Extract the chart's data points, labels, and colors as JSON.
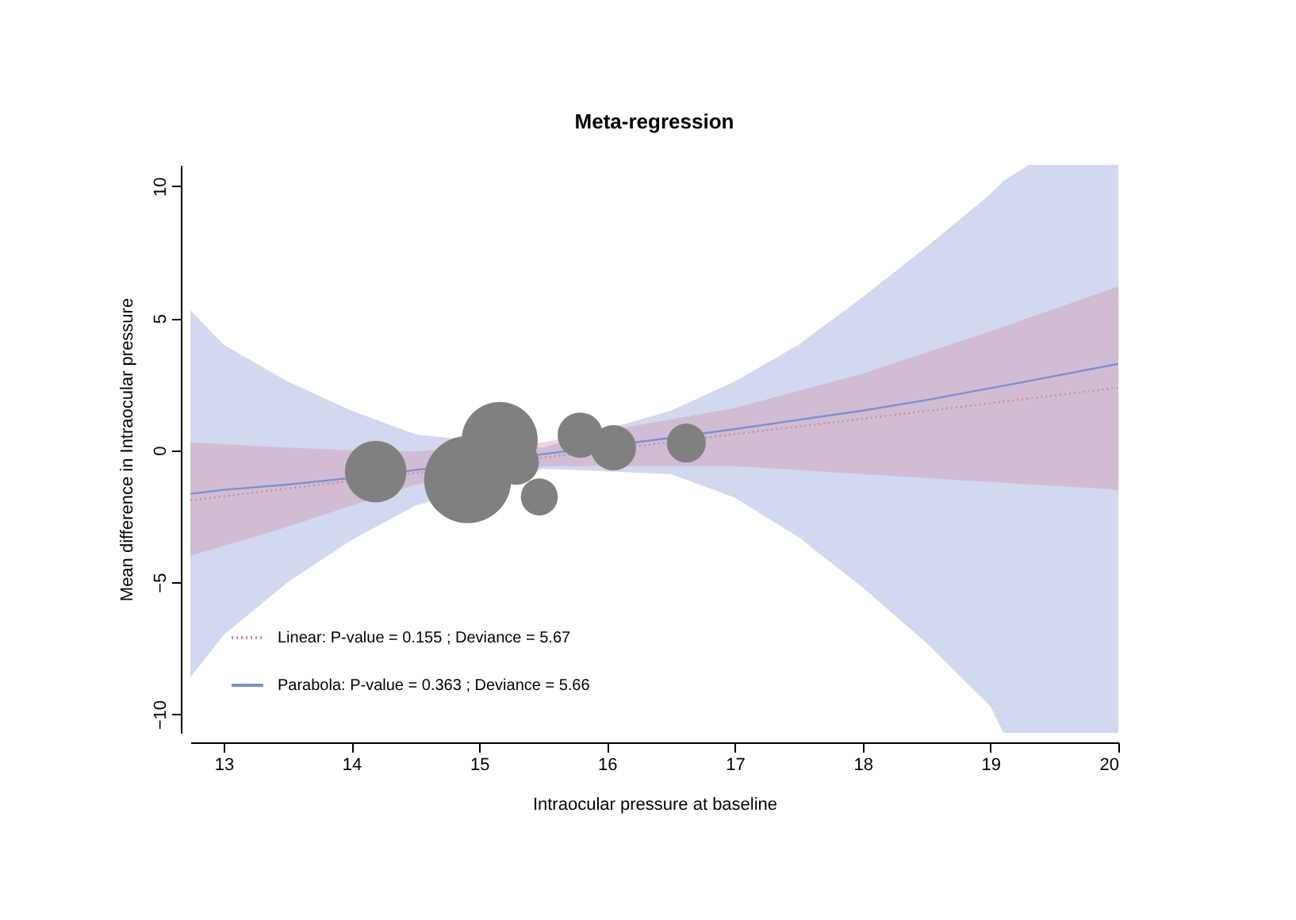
{
  "chart_data": {
    "type": "line",
    "title": "Meta-regression",
    "xlabel": "Intraocular pressure at baseline",
    "ylabel": "Mean difference in Intraocular pressure",
    "xlim": [
      12.74,
      20
    ],
    "ylim": [
      -10.7,
      10.8
    ],
    "xticks": [
      13,
      14,
      15,
      16,
      17,
      18,
      19,
      20
    ],
    "yticks": [
      -10,
      -5,
      0,
      5,
      10
    ],
    "grid": false,
    "legend": "bottom left",
    "marker": "none",
    "series": [
      {
        "name": "Linear: P-value = 0.155 ;  Deviance = 5.67",
        "color": "#d08aa0",
        "line_style": "dotted",
        "x": [
          12.74,
          13.5,
          14,
          14.5,
          15.5,
          17,
          18,
          19,
          20
        ],
        "values": [
          -1.9,
          -1.45,
          -1.16,
          -0.86,
          -0.28,
          0.61,
          1.19,
          1.78,
          2.37
        ],
        "lower": [
          -4.0,
          -2.9,
          -2.1,
          -1.3,
          -0.6,
          -0.6,
          -0.9,
          -1.2,
          -1.5
        ],
        "upper": [
          0.3,
          0.1,
          0.0,
          -0.05,
          0.3,
          1.6,
          2.9,
          4.5,
          6.2
        ]
      },
      {
        "name": "Parabola: P-value = 0.363 ;  Deviance = 5.66",
        "color": "#7f8fd0",
        "line_style": "solid",
        "x": [
          12.74,
          13,
          13.5,
          14,
          14.5,
          15.5,
          16.5,
          17,
          17.5,
          18,
          18.5,
          19,
          19.1,
          19.3,
          20
        ],
        "values": [
          -1.65,
          -1.5,
          -1.3,
          -1.05,
          -0.75,
          -0.15,
          0.47,
          0.8,
          1.15,
          1.5,
          1.9,
          2.35,
          2.44,
          2.62,
          3.27
        ],
        "lower": [
          -8.6,
          -7.0,
          -5.0,
          -3.4,
          -2.1,
          -0.7,
          -0.9,
          -1.8,
          -3.3,
          -5.2,
          -7.3,
          -9.7,
          -10.7,
          -10.7,
          -10.7
        ],
        "upper": [
          5.3,
          4.0,
          2.6,
          1.5,
          0.6,
          0.1,
          1.5,
          2.6,
          4.0,
          5.8,
          7.7,
          9.7,
          10.2,
          10.8,
          10.8
        ]
      },
      {
        "type": "bubble",
        "color": "#808080",
        "marker": "circle",
        "x": [
          14.19,
          14.91,
          15.16,
          15.29,
          15.47,
          15.79,
          16.05,
          16.62
        ],
        "values": [
          -0.81,
          -1.11,
          0.39,
          -0.45,
          -1.77,
          0.57,
          0.09,
          0.27
        ],
        "sizes": [
          0.5,
          1,
          0.76,
          0.27,
          0.18,
          0.27,
          0.27,
          0.2
        ]
      }
    ]
  }
}
